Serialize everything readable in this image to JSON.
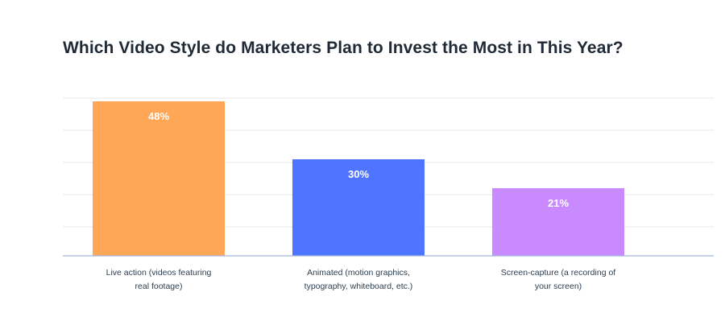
{
  "chart_data": {
    "type": "bar",
    "title": "Which Video Style do Marketers Plan to Invest the Most in This Year?",
    "categories": [
      [
        "Live action (videos featuring",
        "real footage)"
      ],
      [
        "Animated (motion graphics,",
        "typography, whiteboard, etc.)"
      ],
      [
        "Screen-capture (a recording of",
        "your screen)"
      ]
    ],
    "values": [
      48,
      30,
      21
    ],
    "value_labels": [
      "48%",
      "30%",
      "21%"
    ],
    "colors": [
      "#FFA756",
      "#4F74FF",
      "#C98AFF"
    ],
    "ylim": [
      0,
      50
    ],
    "grid": true,
    "xlabel": "",
    "ylabel": ""
  }
}
